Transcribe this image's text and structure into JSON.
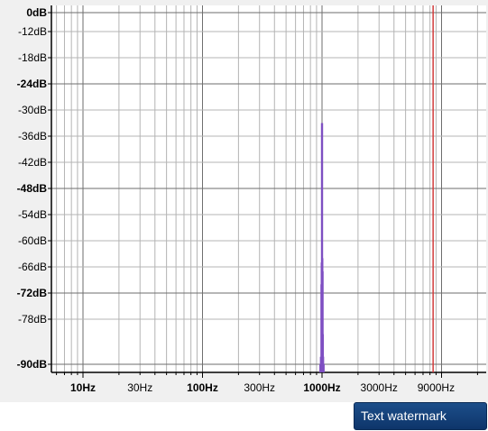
{
  "spectrum": {
    "y_ticks": [
      {
        "label": "0dB",
        "db": 0,
        "major": true
      },
      {
        "label": "-12dB",
        "db": -12,
        "major": false
      },
      {
        "label": "-18dB",
        "db": -18,
        "major": false
      },
      {
        "label": "-24dB",
        "db": -24,
        "major": true
      },
      {
        "label": "-30dB",
        "db": -30,
        "major": false
      },
      {
        "label": "-36dB",
        "db": -36,
        "major": false
      },
      {
        "label": "-42dB",
        "db": -42,
        "major": false
      },
      {
        "label": "-48dB",
        "db": -48,
        "major": true
      },
      {
        "label": "-54dB",
        "db": -54,
        "major": false
      },
      {
        "label": "-60dB",
        "db": -60,
        "major": false
      },
      {
        "label": "-66dB",
        "db": -66,
        "major": false
      },
      {
        "label": "-72dB",
        "db": -72,
        "major": true
      },
      {
        "label": "-78dB",
        "db": -78,
        "major": false
      },
      {
        "label": "-90dB",
        "db": -90,
        "major": true
      }
    ],
    "x_ticks": [
      {
        "label": "10Hz",
        "hz": 10,
        "major": true
      },
      {
        "label": "30Hz",
        "hz": 30,
        "major": false
      },
      {
        "label": "100Hz",
        "hz": 100,
        "major": true
      },
      {
        "label": "300Hz",
        "hz": 300,
        "major": false
      },
      {
        "label": "1000Hz",
        "hz": 1000,
        "major": true
      },
      {
        "label": "3000Hz",
        "hz": 3000,
        "major": false
      },
      {
        "label": "9000Hz",
        "hz": 9000,
        "major": false
      }
    ],
    "marker_hz": 8500,
    "colors": {
      "grid": "#b4b4b4",
      "grid_major": "#6e6e6e",
      "axis": "#000000",
      "peak": "#7e4fc2",
      "marker": "#d23c3c",
      "plot_bg": "#ffffff",
      "panel_bg": "#f0f0f0"
    },
    "peaks": [
      {
        "hz": 970,
        "db": -90
      },
      {
        "hz": 980,
        "db": -88
      },
      {
        "hz": 990,
        "db": -70
      },
      {
        "hz": 995,
        "db": -65
      },
      {
        "hz": 1000,
        "db": -33
      },
      {
        "hz": 1005,
        "db": -64
      },
      {
        "hz": 1010,
        "db": -67
      },
      {
        "hz": 1015,
        "db": -82
      },
      {
        "hz": 1020,
        "db": -88
      },
      {
        "hz": 1030,
        "db": -90
      }
    ]
  },
  "watermark_button": {
    "label": "Text watermark"
  }
}
